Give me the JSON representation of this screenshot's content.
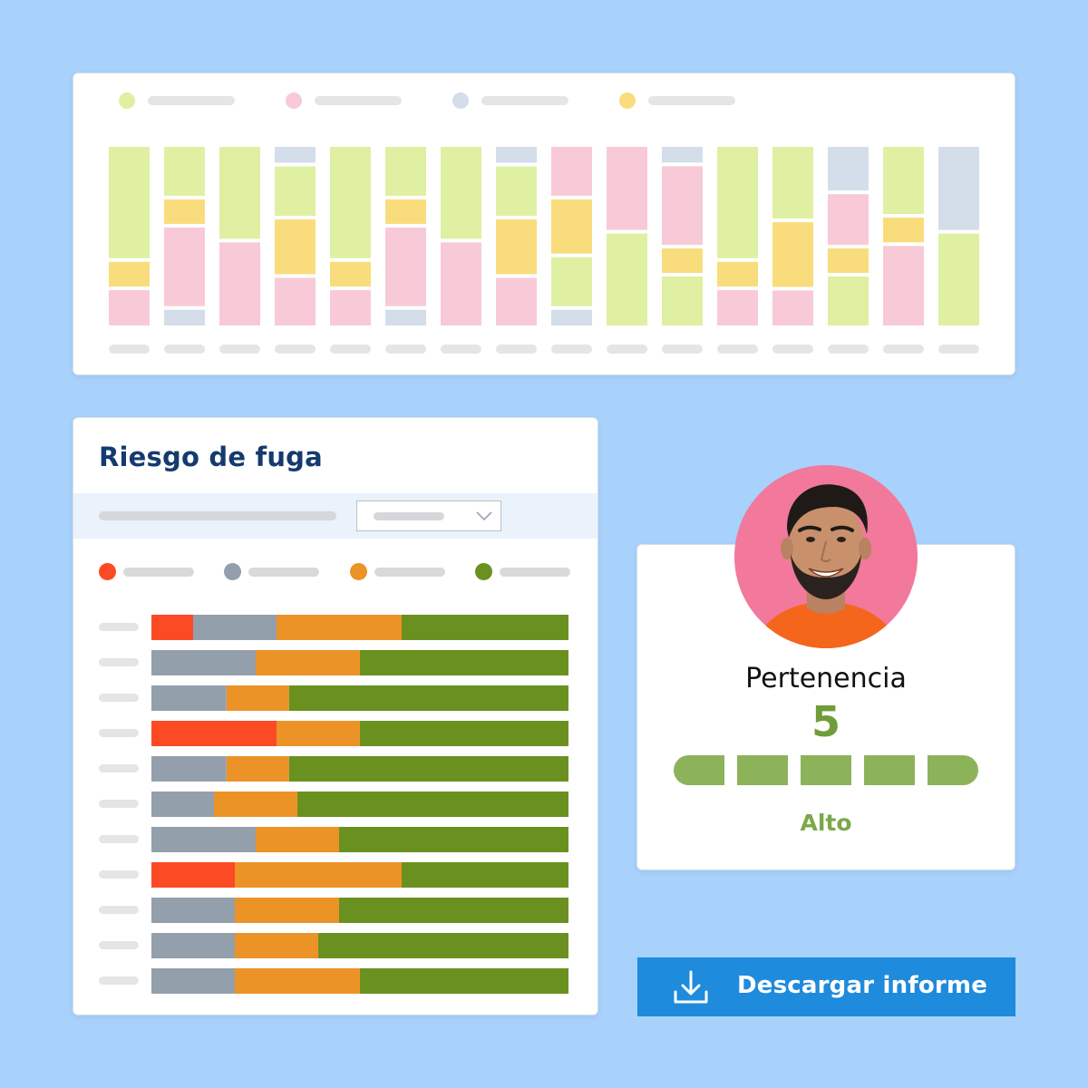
{
  "colors": {
    "background": "#a8d1fb",
    "top_green": "#dff0a3",
    "top_pink": "#f8cad8",
    "top_slate": "#d4deea",
    "top_yellow": "#f9dd7c",
    "risk_red": "#fc4a25",
    "risk_gray": "#949fac",
    "risk_orange": "#ec9327",
    "risk_green": "#6a9120",
    "meter_fill": "#8db35a",
    "button": "#1f8bdc"
  },
  "chart_data": [
    {
      "type": "bar",
      "stacked": true,
      "orientation": "vertical",
      "legend_colors": [
        "#dff0a3",
        "#f8cad8",
        "#d4deea",
        "#f9dd7c"
      ],
      "series_colors": {
        "slate": "#d4deea",
        "green": "#dff0a3",
        "yellow": "#f9dd7c",
        "pink": "#f8cad8"
      },
      "bars": [
        [
          [
            "green",
            63
          ],
          [
            "yellow",
            14
          ],
          [
            "pink",
            20
          ]
        ],
        [
          [
            "green",
            28
          ],
          [
            "yellow",
            14
          ],
          [
            "pink",
            45
          ],
          [
            "slate",
            9
          ]
        ],
        [
          [
            "green",
            52
          ],
          [
            "pink",
            47
          ]
        ],
        [
          [
            "slate",
            9
          ],
          [
            "green",
            28
          ],
          [
            "yellow",
            31
          ],
          [
            "pink",
            27
          ]
        ],
        [
          [
            "green",
            63
          ],
          [
            "yellow",
            14
          ],
          [
            "pink",
            20
          ]
        ],
        [
          [
            "green",
            28
          ],
          [
            "yellow",
            14
          ],
          [
            "pink",
            45
          ],
          [
            "slate",
            9
          ]
        ],
        [
          [
            "green",
            52
          ],
          [
            "pink",
            47
          ]
        ],
        [
          [
            "slate",
            9
          ],
          [
            "green",
            28
          ],
          [
            "yellow",
            31
          ],
          [
            "pink",
            27
          ]
        ],
        [
          [
            "pink",
            28
          ],
          [
            "yellow",
            31
          ],
          [
            "green",
            28
          ],
          [
            "slate",
            9
          ]
        ],
        [
          [
            "pink",
            47
          ],
          [
            "green",
            52
          ]
        ],
        [
          [
            "slate",
            9
          ],
          [
            "pink",
            45
          ],
          [
            "yellow",
            14
          ],
          [
            "green",
            28
          ]
        ],
        [
          [
            "green",
            63
          ],
          [
            "yellow",
            14
          ],
          [
            "pink",
            20
          ]
        ],
        [
          [
            "green",
            41
          ],
          [
            "yellow",
            37
          ],
          [
            "pink",
            20
          ]
        ],
        [
          [
            "slate",
            25
          ],
          [
            "pink",
            29
          ],
          [
            "yellow",
            14
          ],
          [
            "green",
            28
          ]
        ],
        [
          [
            "green",
            38
          ],
          [
            "yellow",
            14
          ],
          [
            "pink",
            45
          ]
        ],
        [
          [
            "slate",
            47
          ],
          [
            "green",
            52
          ]
        ]
      ]
    },
    {
      "type": "bar",
      "stacked": true,
      "orientation": "horizontal",
      "title": "Riesgo de fuga",
      "series_colors": [
        "#fc4a25",
        "#949fac",
        "#ec9327",
        "#6a9120"
      ],
      "rows": [
        [
          10,
          20,
          30,
          40
        ],
        [
          0,
          25,
          25,
          50
        ],
        [
          0,
          18,
          15,
          67
        ],
        [
          30,
          0,
          20,
          50
        ],
        [
          0,
          18,
          15,
          67
        ],
        [
          0,
          15,
          20,
          65
        ],
        [
          0,
          25,
          20,
          55
        ],
        [
          20,
          0,
          40,
          40
        ],
        [
          0,
          20,
          25,
          55
        ],
        [
          0,
          20,
          20,
          60
        ],
        [
          0,
          20,
          30,
          50
        ]
      ]
    }
  ],
  "risk": {
    "title": "Riesgo de fuga"
  },
  "person": {
    "label": "Pertenencia",
    "score": "5",
    "meter_filled": 5,
    "meter_total": 5,
    "level": "Alto"
  },
  "download": {
    "label": "Descargar informe",
    "icon": "download-icon"
  }
}
